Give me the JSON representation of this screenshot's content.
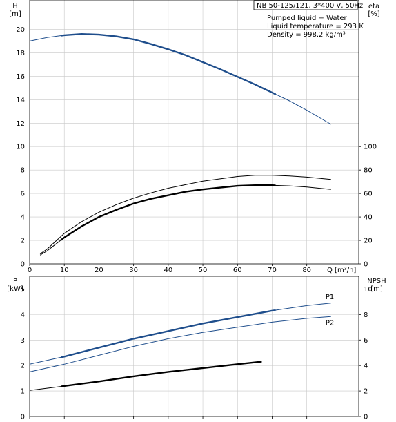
{
  "colors": {
    "blue": "#1f4e8c",
    "black": "#000000",
    "grid": "#c8c8c8"
  },
  "header": {
    "title": "NB 50-125/121, 3*400 V, 50Hz",
    "liquid": "Pumped liquid = Water",
    "temperature": "Liquid temperature = 293 K",
    "density": "Density = 998.2 kg/m³"
  },
  "chart_data": [
    {
      "type": "line",
      "panel": "top",
      "xlabel": "Q [m³/h]",
      "ylabel": "H\n[m]",
      "y2label": "eta\n[%]",
      "x_ticks": [
        0,
        10,
        20,
        30,
        40,
        50,
        60,
        70,
        80
      ],
      "y_ticks": [
        0,
        2,
        4,
        6,
        8,
        10,
        12,
        14,
        16,
        18,
        20
      ],
      "y2_ticks": [
        0,
        20,
        40,
        60,
        80,
        100
      ],
      "xlim": [
        0,
        95
      ],
      "ylim": [
        0,
        22.5
      ],
      "y2lim": [
        0,
        225
      ],
      "grid": true,
      "series": [
        {
          "role": "H",
          "axis": "y",
          "color": "#1f4e8c",
          "x": [
            0,
            5,
            10,
            15,
            20,
            25,
            30,
            35,
            40,
            45,
            50,
            55,
            60,
            65,
            70,
            75,
            80,
            87
          ],
          "y": [
            19.0,
            19.3,
            19.5,
            19.6,
            19.55,
            19.4,
            19.15,
            18.75,
            18.3,
            17.8,
            17.2,
            16.6,
            15.95,
            15.3,
            14.6,
            13.9,
            13.1,
            11.9
          ],
          "bold_range": [
            9,
            71
          ]
        },
        {
          "role": "eta",
          "axis": "y2",
          "color": "#000000",
          "x": [
            3,
            5,
            10,
            15,
            20,
            25,
            30,
            35,
            40,
            45,
            50,
            55,
            60,
            65,
            70,
            75,
            80,
            87
          ],
          "y": [
            8.5,
            12.5,
            26,
            36,
            44,
            50.5,
            56,
            60.5,
            64.5,
            67.5,
            70.5,
            72.5,
            74.5,
            75.5,
            75.5,
            75,
            74,
            72
          ],
          "bold_range": null
        },
        {
          "role": "eta2",
          "axis": "y2",
          "color": "#000000",
          "x": [
            3,
            5,
            10,
            15,
            20,
            25,
            30,
            35,
            40,
            45,
            50,
            55,
            60,
            65,
            70,
            75,
            80,
            87
          ],
          "y": [
            7.5,
            11,
            22.5,
            32,
            40,
            46,
            51.5,
            55.5,
            58.5,
            61.5,
            63.5,
            65,
            66.5,
            67,
            67,
            66.5,
            65.5,
            63.5
          ],
          "bold_range": [
            9,
            71
          ]
        }
      ]
    },
    {
      "type": "line",
      "panel": "bottom",
      "ylabel": "P\n[kW]",
      "y2label": "NPSH\n[m]",
      "y_ticks": [
        0,
        1,
        2,
        3,
        4,
        5
      ],
      "y2_ticks": [
        0,
        2,
        4,
        6,
        8,
        10
      ],
      "xlim": [
        0,
        95
      ],
      "ylim": [
        0,
        5.5
      ],
      "y2lim": [
        0,
        11
      ],
      "grid": true,
      "series": [
        {
          "role": "P1",
          "name": "P1",
          "axis": "y",
          "color": "#1f4e8c",
          "x": [
            0,
            10,
            20,
            30,
            40,
            50,
            60,
            70,
            80,
            87
          ],
          "y": [
            2.05,
            2.35,
            2.7,
            3.05,
            3.35,
            3.65,
            3.9,
            4.15,
            4.35,
            4.45
          ],
          "bold_range": [
            9,
            71
          ]
        },
        {
          "role": "P2",
          "name": "P2",
          "axis": "y",
          "color": "#1f4e8c",
          "x": [
            0,
            10,
            20,
            30,
            40,
            50,
            60,
            70,
            80,
            87
          ],
          "y": [
            1.75,
            2.05,
            2.4,
            2.75,
            3.05,
            3.3,
            3.5,
            3.7,
            3.85,
            3.92
          ],
          "bold_range": null
        },
        {
          "role": "NPSH",
          "axis": "y2",
          "color": "#000000",
          "x": [
            0,
            9,
            20,
            30,
            40,
            50,
            60,
            67
          ],
          "y": [
            2.05,
            2.35,
            2.75,
            3.15,
            3.5,
            3.8,
            4.1,
            4.3
          ],
          "bold_range": [
            9,
            67
          ]
        }
      ]
    }
  ]
}
